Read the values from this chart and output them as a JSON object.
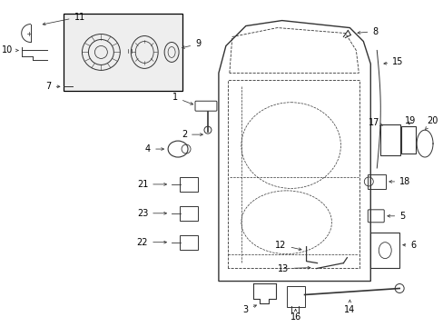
{
  "bg_color": "#ffffff",
  "line_color": "#333333",
  "inset_bg": "#eeeeee",
  "label_fontsize": 7.0
}
